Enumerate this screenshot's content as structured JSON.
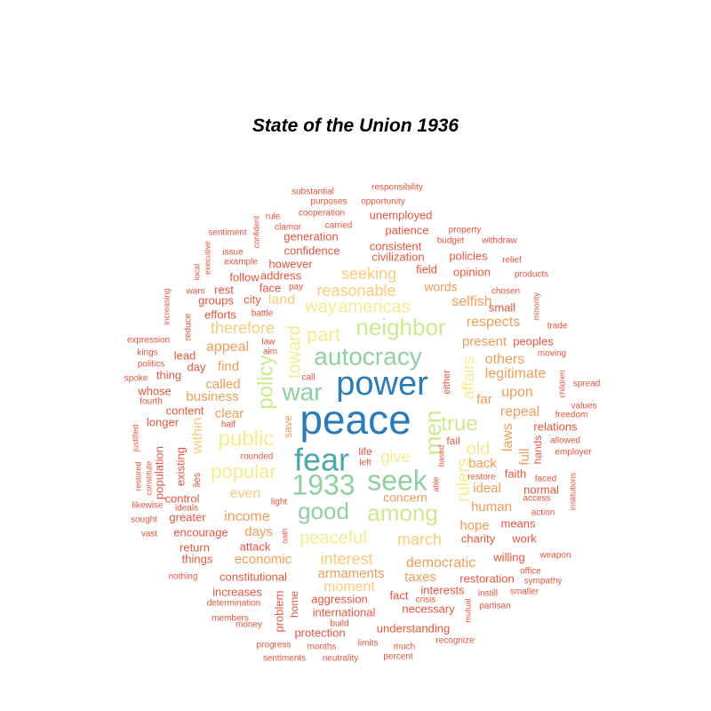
{
  "chart_data": {
    "type": "wordcloud",
    "title": "State of the Union 1936",
    "palette": [
      "#d7191c",
      "#e8553f",
      "#f39c59",
      "#fdcb7a",
      "#f6eb8f",
      "#cde88f",
      "#8fcfa0",
      "#4ba8a8",
      "#2b7bb9"
    ],
    "words": [
      {
        "text": "peace",
        "color": "#2b7bb9"
      },
      {
        "text": "power",
        "color": "#2b7bb9"
      },
      {
        "text": "fear",
        "color": "#4ba8a8"
      },
      {
        "text": "autocracy",
        "color": "#8fcfa0"
      },
      {
        "text": "seek",
        "color": "#8fcfa0"
      },
      {
        "text": "war",
        "color": "#8fcfa0"
      },
      {
        "text": "1933",
        "color": "#8fcfa0"
      },
      {
        "text": "good",
        "color": "#8fcfa0"
      },
      {
        "text": "neighbor",
        "color": "#cde88f"
      },
      {
        "text": "true",
        "color": "#cde88f"
      },
      {
        "text": "among",
        "color": "#cde88f"
      },
      {
        "text": "policy",
        "color": "#cde88f"
      },
      {
        "text": "men",
        "color": "#cde88f"
      },
      {
        "text": "public",
        "color": "#f6eb8f"
      },
      {
        "text": "part",
        "color": "#f6eb8f"
      },
      {
        "text": "way",
        "color": "#f6eb8f"
      },
      {
        "text": "americas",
        "color": "#f6eb8f"
      },
      {
        "text": "popular",
        "color": "#f6eb8f"
      },
      {
        "text": "give",
        "color": "#f6eb8f"
      },
      {
        "text": "toward",
        "color": "#f6eb8f"
      },
      {
        "text": "peaceful",
        "color": "#f6eb8f"
      },
      {
        "text": "rulers",
        "color": "#f6eb8f"
      },
      {
        "text": "affairs",
        "color": "#f6eb8f"
      },
      {
        "text": "old",
        "color": "#f6eb8f"
      },
      {
        "text": "seeking",
        "color": "#fdcb7a"
      },
      {
        "text": "reasonable",
        "color": "#fdcb7a"
      },
      {
        "text": "therefore",
        "color": "#fdcb7a"
      },
      {
        "text": "interest",
        "color": "#fdcb7a"
      },
      {
        "text": "march",
        "color": "#fdcb7a"
      },
      {
        "text": "even",
        "color": "#fdcb7a"
      },
      {
        "text": "within",
        "color": "#fdcb7a"
      },
      {
        "text": "moment",
        "color": "#fdcb7a"
      },
      {
        "text": "land",
        "color": "#fdcb7a"
      },
      {
        "text": "democratic",
        "color": "#f39c59"
      },
      {
        "text": "income",
        "color": "#f39c59"
      },
      {
        "text": "respects",
        "color": "#f39c59"
      },
      {
        "text": "present",
        "color": "#f39c59"
      },
      {
        "text": "others",
        "color": "#f39c59"
      },
      {
        "text": "legitimate",
        "color": "#f39c59"
      },
      {
        "text": "upon",
        "color": "#f39c59"
      },
      {
        "text": "far",
        "color": "#f39c59"
      },
      {
        "text": "repeal",
        "color": "#f39c59"
      },
      {
        "text": "laws",
        "color": "#f39c59"
      },
      {
        "text": "back",
        "color": "#f39c59"
      },
      {
        "text": "ideal",
        "color": "#f39c59"
      },
      {
        "text": "human",
        "color": "#f39c59"
      },
      {
        "text": "hope",
        "color": "#f39c59"
      },
      {
        "text": "selfish",
        "color": "#f39c59"
      },
      {
        "text": "words",
        "color": "#f39c59"
      },
      {
        "text": "appeal",
        "color": "#f39c59"
      },
      {
        "text": "called",
        "color": "#f39c59"
      },
      {
        "text": "business",
        "color": "#f39c59"
      },
      {
        "text": "clear",
        "color": "#f39c59"
      },
      {
        "text": "find",
        "color": "#f39c59"
      },
      {
        "text": "days",
        "color": "#f39c59"
      },
      {
        "text": "economic",
        "color": "#f39c59"
      },
      {
        "text": "armaments",
        "color": "#f39c59"
      },
      {
        "text": "taxes",
        "color": "#f39c59"
      },
      {
        "text": "concern",
        "color": "#f39c59"
      },
      {
        "text": "full",
        "color": "#f39c59"
      },
      {
        "text": "save",
        "color": "#f39c59"
      },
      {
        "text": "unemployed",
        "color": "#e8553f"
      },
      {
        "text": "patience",
        "color": "#e8553f"
      },
      {
        "text": "consistent",
        "color": "#e8553f"
      },
      {
        "text": "civilization",
        "color": "#e8553f"
      },
      {
        "text": "policies",
        "color": "#e8553f"
      },
      {
        "text": "opinion",
        "color": "#e8553f"
      },
      {
        "text": "field",
        "color": "#e8553f"
      },
      {
        "text": "generation",
        "color": "#e8553f"
      },
      {
        "text": "confidence",
        "color": "#e8553f"
      },
      {
        "text": "however",
        "color": "#e8553f"
      },
      {
        "text": "address",
        "color": "#e8553f"
      },
      {
        "text": "follow",
        "color": "#e8553f"
      },
      {
        "text": "rest",
        "color": "#e8553f"
      },
      {
        "text": "face",
        "color": "#e8553f"
      },
      {
        "text": "city",
        "color": "#e8553f"
      },
      {
        "text": "groups",
        "color": "#e8553f"
      },
      {
        "text": "efforts",
        "color": "#e8553f"
      },
      {
        "text": "small",
        "color": "#e8553f"
      },
      {
        "text": "peoples",
        "color": "#e8553f"
      },
      {
        "text": "lead",
        "color": "#e8553f"
      },
      {
        "text": "day",
        "color": "#e8553f"
      },
      {
        "text": "thing",
        "color": "#e8553f"
      },
      {
        "text": "whose",
        "color": "#e8553f"
      },
      {
        "text": "content",
        "color": "#e8553f"
      },
      {
        "text": "longer",
        "color": "#e8553f"
      },
      {
        "text": "existing",
        "color": "#e8553f"
      },
      {
        "text": "population",
        "color": "#e8553f"
      },
      {
        "text": "control",
        "color": "#e8553f"
      },
      {
        "text": "greater",
        "color": "#e8553f"
      },
      {
        "text": "encourage",
        "color": "#e8553f"
      },
      {
        "text": "return",
        "color": "#e8553f"
      },
      {
        "text": "things",
        "color": "#e8553f"
      },
      {
        "text": "attack",
        "color": "#e8553f"
      },
      {
        "text": "constitutional",
        "color": "#e8553f"
      },
      {
        "text": "increases",
        "color": "#e8553f"
      },
      {
        "text": "problem",
        "color": "#e8553f"
      },
      {
        "text": "home",
        "color": "#e8553f"
      },
      {
        "text": "aggression",
        "color": "#e8553f"
      },
      {
        "text": "fact",
        "color": "#e8553f"
      },
      {
        "text": "interests",
        "color": "#e8553f"
      },
      {
        "text": "international",
        "color": "#e8553f"
      },
      {
        "text": "necessary",
        "color": "#e8553f"
      },
      {
        "text": "protection",
        "color": "#e8553f"
      },
      {
        "text": "understanding",
        "color": "#e8553f"
      },
      {
        "text": "restoration",
        "color": "#e8553f"
      },
      {
        "text": "willing",
        "color": "#e8553f"
      },
      {
        "text": "charity",
        "color": "#e8553f"
      },
      {
        "text": "work",
        "color": "#e8553f"
      },
      {
        "text": "means",
        "color": "#e8553f"
      },
      {
        "text": "normal",
        "color": "#e8553f"
      },
      {
        "text": "faith",
        "color": "#e8553f"
      },
      {
        "text": "relations",
        "color": "#e8553f"
      },
      {
        "text": "hands",
        "color": "#e8553f"
      },
      {
        "text": "lies",
        "color": "#e8553f"
      },
      {
        "text": "fail",
        "color": "#e8553f"
      },
      {
        "text": "life",
        "color": "#e8553f"
      },
      {
        "text": "either",
        "color": "#e8553f"
      },
      {
        "text": "substantial",
        "color": "#e8553f"
      },
      {
        "text": "responsibility",
        "color": "#e8553f"
      },
      {
        "text": "purposes",
        "color": "#e8553f"
      },
      {
        "text": "opportunity",
        "color": "#e8553f"
      },
      {
        "text": "cooperation",
        "color": "#e8553f"
      },
      {
        "text": "rule",
        "color": "#e8553f"
      },
      {
        "text": "clamor",
        "color": "#e8553f"
      },
      {
        "text": "carried",
        "color": "#e8553f"
      },
      {
        "text": "confident",
        "color": "#e8553f"
      },
      {
        "text": "sentiment",
        "color": "#e8553f"
      },
      {
        "text": "property",
        "color": "#e8553f"
      },
      {
        "text": "budget",
        "color": "#e8553f"
      },
      {
        "text": "withdraw",
        "color": "#e8553f"
      },
      {
        "text": "relief",
        "color": "#e8553f"
      },
      {
        "text": "issue",
        "color": "#e8553f"
      },
      {
        "text": "example",
        "color": "#e8553f"
      },
      {
        "text": "executive",
        "color": "#e8553f"
      },
      {
        "text": "local",
        "color": "#e8553f"
      },
      {
        "text": "products",
        "color": "#e8553f"
      },
      {
        "text": "chosen",
        "color": "#e8553f"
      },
      {
        "text": "pay",
        "color": "#e8553f"
      },
      {
        "text": "wars",
        "color": "#e8553f"
      },
      {
        "text": "increasing",
        "color": "#e8553f"
      },
      {
        "text": "minority",
        "color": "#e8553f"
      },
      {
        "text": "trade",
        "color": "#e8553f"
      },
      {
        "text": "reduce",
        "color": "#e8553f"
      },
      {
        "text": "battle",
        "color": "#e8553f"
      },
      {
        "text": "expression",
        "color": "#e8553f"
      },
      {
        "text": "kings",
        "color": "#e8553f"
      },
      {
        "text": "politics",
        "color": "#e8553f"
      },
      {
        "text": "law",
        "color": "#e8553f"
      },
      {
        "text": "aim",
        "color": "#e8553f"
      },
      {
        "text": "moving",
        "color": "#e8553f"
      },
      {
        "text": "spoke",
        "color": "#e8553f"
      },
      {
        "text": "call",
        "color": "#e8553f"
      },
      {
        "text": "children",
        "color": "#e8553f"
      },
      {
        "text": "spread",
        "color": "#e8553f"
      },
      {
        "text": "fourth",
        "color": "#e8553f"
      },
      {
        "text": "values",
        "color": "#e8553f"
      },
      {
        "text": "half",
        "color": "#e8553f"
      },
      {
        "text": "freedom",
        "color": "#e8553f"
      },
      {
        "text": "allowed",
        "color": "#e8553f"
      },
      {
        "text": "justified",
        "color": "#e8553f"
      },
      {
        "text": "rounded",
        "color": "#e8553f"
      },
      {
        "text": "based",
        "color": "#e8553f"
      },
      {
        "text": "employer",
        "color": "#e8553f"
      },
      {
        "text": "left",
        "color": "#e8553f"
      },
      {
        "text": "restored",
        "color": "#e8553f"
      },
      {
        "text": "constitute",
        "color": "#e8553f"
      },
      {
        "text": "restore",
        "color": "#e8553f"
      },
      {
        "text": "faced",
        "color": "#e8553f"
      },
      {
        "text": "able",
        "color": "#e8553f"
      },
      {
        "text": "access",
        "color": "#e8553f"
      },
      {
        "text": "institutions",
        "color": "#e8553f"
      },
      {
        "text": "likewise",
        "color": "#e8553f"
      },
      {
        "text": "ideals",
        "color": "#e8553f"
      },
      {
        "text": "light",
        "color": "#e8553f"
      },
      {
        "text": "action",
        "color": "#e8553f"
      },
      {
        "text": "sought",
        "color": "#e8553f"
      },
      {
        "text": "vast",
        "color": "#e8553f"
      },
      {
        "text": "oath",
        "color": "#e8553f"
      },
      {
        "text": "weapon",
        "color": "#e8553f"
      },
      {
        "text": "office",
        "color": "#e8553f"
      },
      {
        "text": "nothing",
        "color": "#e8553f"
      },
      {
        "text": "sympathy",
        "color": "#e8553f"
      },
      {
        "text": "determination",
        "color": "#e8553f"
      },
      {
        "text": "crisis",
        "color": "#e8553f"
      },
      {
        "text": "instill",
        "color": "#e8553f"
      },
      {
        "text": "smaller",
        "color": "#e8553f"
      },
      {
        "text": "mutual",
        "color": "#e8553f"
      },
      {
        "text": "partisan",
        "color": "#e8553f"
      },
      {
        "text": "members",
        "color": "#e8553f"
      },
      {
        "text": "money",
        "color": "#e8553f"
      },
      {
        "text": "build",
        "color": "#e8553f"
      },
      {
        "text": "progress",
        "color": "#e8553f"
      },
      {
        "text": "months",
        "color": "#e8553f"
      },
      {
        "text": "limits",
        "color": "#e8553f"
      },
      {
        "text": "much",
        "color": "#e8553f"
      },
      {
        "text": "recognize",
        "color": "#e8553f"
      },
      {
        "text": "sentiments",
        "color": "#e8553f"
      },
      {
        "text": "neutrality",
        "color": "#e8553f"
      },
      {
        "text": "percent",
        "color": "#e8553f"
      }
    ]
  }
}
